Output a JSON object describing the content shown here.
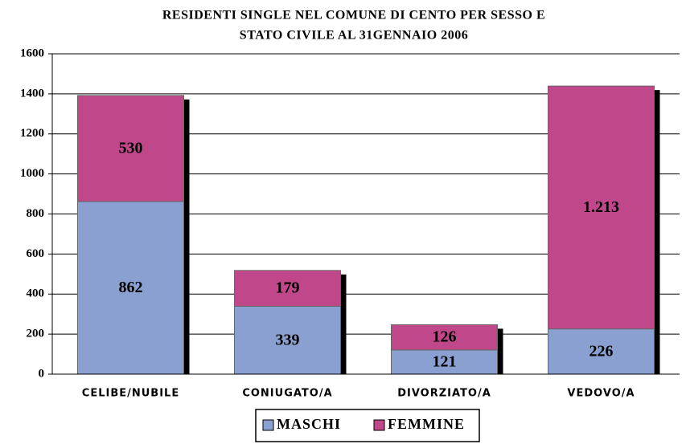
{
  "chart_data": {
    "type": "stacked_bar",
    "title": [
      "RESIDENTI SINGLE NEL COMUNE DI CENTO PER SESSO E",
      "STATO CIVILE AL 31GENNAIO 2006"
    ],
    "categories": [
      "CELIBE/NUBILE",
      "CONIUGATO/A",
      "DIVORZIATO/A",
      "VEDOVO/A"
    ],
    "series": [
      {
        "name": "MASCHI",
        "color": "#8aa0d0",
        "values": [
          862,
          339,
          121,
          226
        ]
      },
      {
        "name": "FEMMINE",
        "color": "#c0478a",
        "values": [
          530,
          179,
          126,
          1213
        ],
        "value_labels": [
          "530",
          "179",
          "126",
          "1.213"
        ]
      }
    ],
    "ylim": [
      0,
      1600
    ],
    "yticks": [
      0,
      200,
      400,
      600,
      800,
      1000,
      1200,
      1400,
      1600
    ],
    "grid": true,
    "legend": "bottom"
  }
}
